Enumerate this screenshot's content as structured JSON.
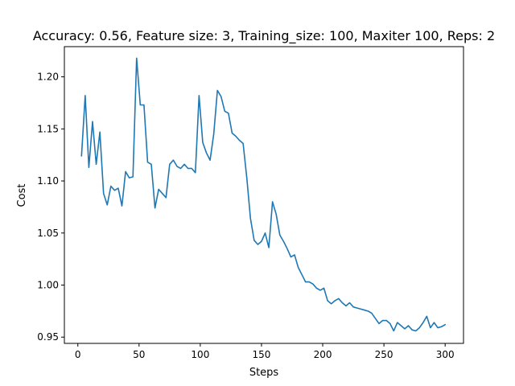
{
  "chart_data": {
    "type": "line",
    "title": "Accuracy: 0.56, Feature size: 3, Training_size: 100, Maxiter 100, Reps: 2",
    "xlabel": "Steps",
    "ylabel": "Cost",
    "xlim": [
      -11,
      315
    ],
    "ylim": [
      0.944,
      1.229
    ],
    "grid": false,
    "legend": "none",
    "line_color": "#1f77b4",
    "x_ticks": [
      0,
      50,
      100,
      150,
      200,
      250,
      300
    ],
    "x_tick_labels": [
      "0",
      "50",
      "100",
      "150",
      "200",
      "250",
      "300"
    ],
    "y_ticks": [
      0.95,
      1.0,
      1.05,
      1.1,
      1.15,
      1.2
    ],
    "y_tick_labels": [
      "0.95",
      "1.00",
      "1.05",
      "1.10",
      "1.15",
      "1.20"
    ],
    "series": [
      {
        "x": [
          3,
          6,
          9,
          12,
          15,
          18,
          21,
          24,
          27,
          30,
          33,
          36,
          39,
          42,
          45,
          48,
          51,
          54,
          57,
          60,
          63,
          66,
          69,
          72,
          75,
          78,
          81,
          84,
          87,
          90,
          93,
          96,
          99,
          102,
          105,
          108,
          111,
          114,
          117,
          120,
          123,
          126,
          129,
          132,
          135,
          138,
          141,
          144,
          147,
          150,
          153,
          156,
          159,
          162,
          165,
          168,
          171,
          174,
          177,
          180,
          183,
          186,
          189,
          192,
          195,
          198,
          201,
          204,
          207,
          210,
          213,
          216,
          219,
          222,
          225,
          228,
          231,
          234,
          237,
          240,
          243,
          246,
          249,
          252,
          255,
          258,
          261,
          264,
          267,
          270,
          273,
          276,
          279,
          282,
          285,
          288,
          291,
          294,
          297,
          300
        ],
        "values": [
          1.124,
          1.182,
          1.113,
          1.157,
          1.116,
          1.147,
          1.088,
          1.077,
          1.095,
          1.091,
          1.093,
          1.076,
          1.109,
          1.103,
          1.104,
          1.218,
          1.173,
          1.173,
          1.118,
          1.116,
          1.074,
          1.092,
          1.088,
          1.084,
          1.116,
          1.12,
          1.114,
          1.112,
          1.116,
          1.112,
          1.112,
          1.108,
          1.182,
          1.137,
          1.127,
          1.12,
          1.145,
          1.187,
          1.181,
          1.167,
          1.165,
          1.146,
          1.143,
          1.139,
          1.136,
          1.103,
          1.064,
          1.043,
          1.039,
          1.042,
          1.05,
          1.036,
          1.08,
          1.068,
          1.048,
          1.042,
          1.035,
          1.027,
          1.029,
          1.017,
          1.01,
          1.003,
          1.003,
          1.001,
          0.997,
          0.995,
          0.997,
          0.985,
          0.982,
          0.985,
          0.987,
          0.983,
          0.98,
          0.983,
          0.979,
          0.978,
          0.977,
          0.976,
          0.975,
          0.973,
          0.968,
          0.963,
          0.966,
          0.966,
          0.963,
          0.956,
          0.964,
          0.961,
          0.958,
          0.961,
          0.957,
          0.956,
          0.959,
          0.964,
          0.97,
          0.959,
          0.964,
          0.959,
          0.96,
          0.962
        ]
      }
    ]
  }
}
